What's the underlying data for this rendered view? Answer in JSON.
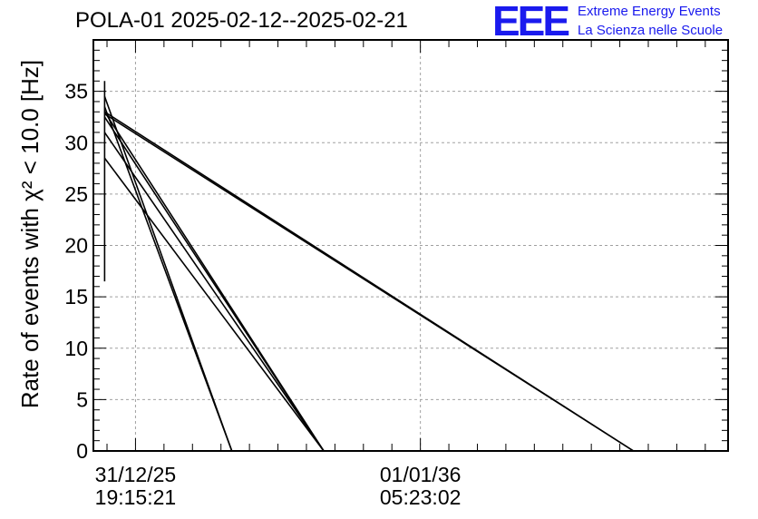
{
  "title": "POLA-01 2025-02-12--2025-02-21",
  "logo": {
    "mark": "EEE",
    "line1": "Extreme Energy Events",
    "line2": "La Scienza nelle Scuole",
    "color": "#1a1aee"
  },
  "chart_data": {
    "type": "line",
    "title": "POLA-01 2025-02-12--2025-02-21",
    "xlabel": "",
    "ylabel": "Rate of events with χ² < 10.0 [Hz]",
    "ylim": [
      0,
      40
    ],
    "yticks": [
      0,
      5,
      10,
      15,
      20,
      25,
      30,
      35
    ],
    "xlim": [
      "2024-07-10",
      "2046-10-20"
    ],
    "xticks": [
      {
        "x": "2025-12-31T19:15:21",
        "date": "31/12/25",
        "time": "19:15:21"
      },
      {
        "x": "2036-01-01T05:23:02",
        "date": "01/01/36",
        "time": "05:23:02"
      }
    ],
    "grid": true,
    "legend": "none",
    "segments": [
      {
        "x0": "2024-12-01",
        "y0": 36.0,
        "x1": "2024-12-01",
        "y1": 16.5
      },
      {
        "x0": "2024-12-01",
        "y0": 34.5,
        "x1": "2029-05-20",
        "y1": 0
      },
      {
        "x0": "2024-12-01",
        "y0": 33.5,
        "x1": "2029-05-20",
        "y1": 0
      },
      {
        "x0": "2024-12-01",
        "y0": 33.0,
        "x1": "2032-08-10",
        "y1": 0
      },
      {
        "x0": "2024-12-01",
        "y0": 32.5,
        "x1": "2032-08-10",
        "y1": 0
      },
      {
        "x0": "2024-12-01",
        "y0": 31.0,
        "x1": "2032-08-10",
        "y1": 0
      },
      {
        "x0": "2024-12-01",
        "y0": 28.5,
        "x1": "2032-08-10",
        "y1": 0
      },
      {
        "x0": "2024-12-01",
        "y0": 33.0,
        "x1": "2043-06-25",
        "y1": 0
      },
      {
        "x0": "2024-12-01",
        "y0": 32.8,
        "x1": "2043-06-25",
        "y1": 0
      }
    ],
    "line_color": "#000000"
  }
}
